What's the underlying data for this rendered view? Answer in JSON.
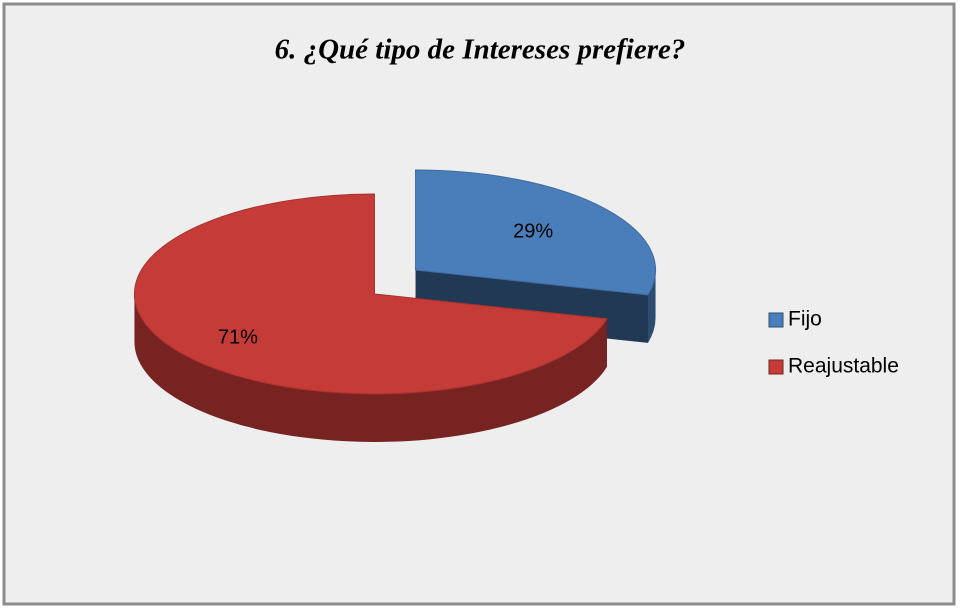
{
  "chart_data": {
    "type": "pie",
    "title": "6. ¿Qué tipo de Intereses prefiere?",
    "categories": [
      "Fijo",
      "Reajustable"
    ],
    "values": [
      29,
      71
    ],
    "value_labels": [
      "29%",
      "71%"
    ],
    "colors": [
      "#4a7ebb",
      "#c43b37"
    ],
    "legend": "right",
    "three_d": true,
    "exploded": true
  }
}
